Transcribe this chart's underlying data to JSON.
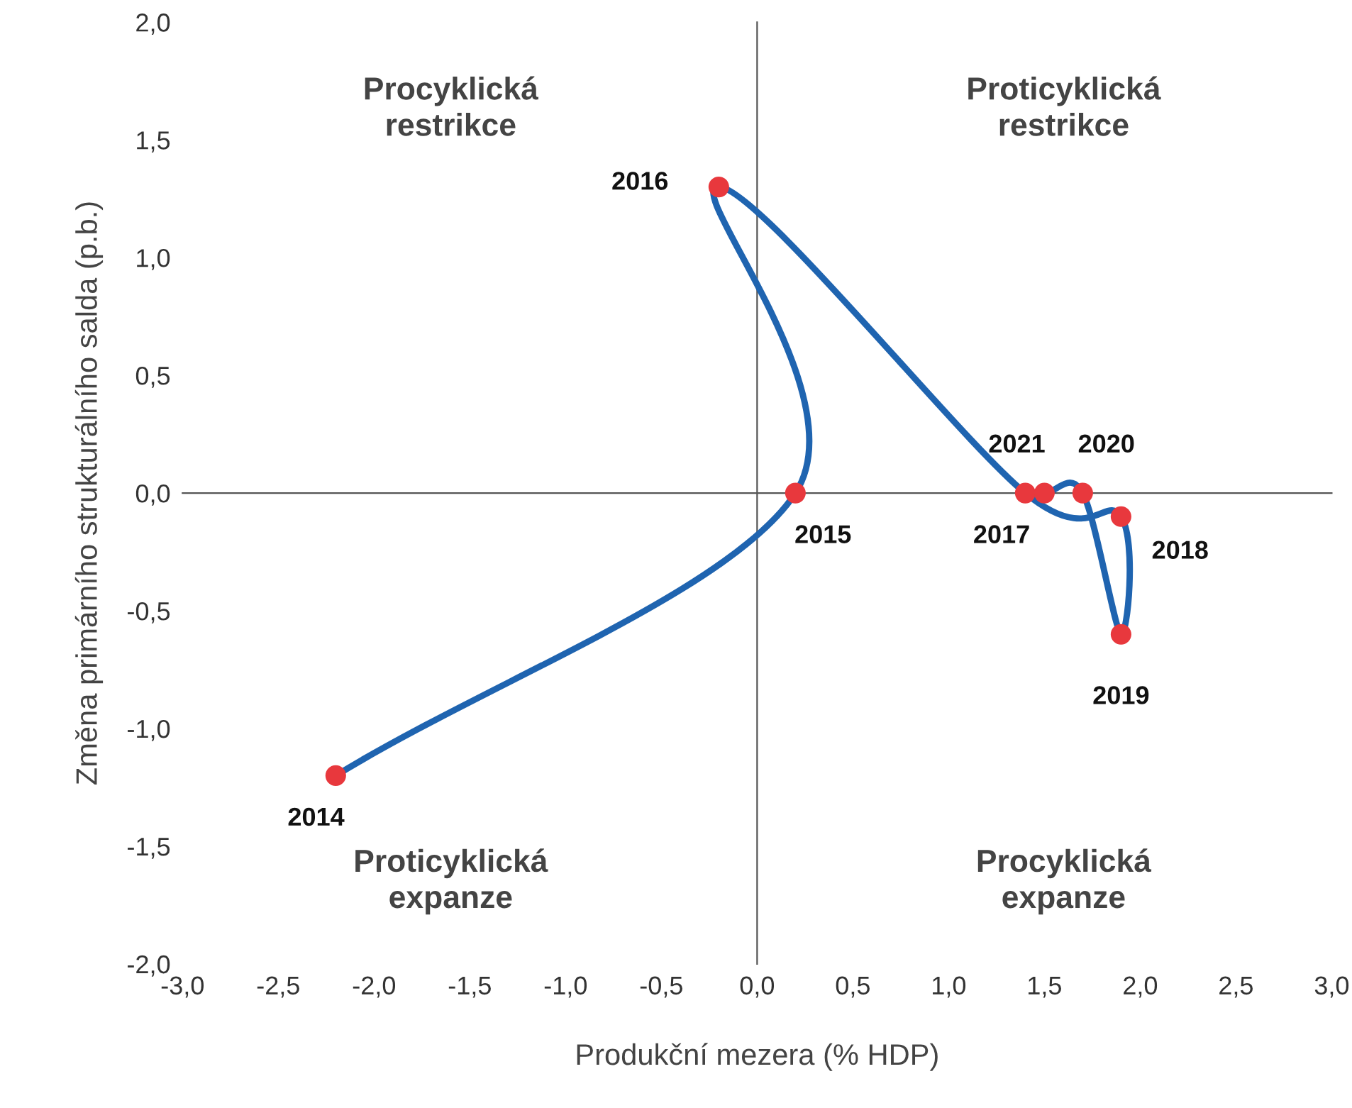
{
  "chart_data": {
    "type": "scatter",
    "xlabel": "Produkční mezera (% HDP)",
    "ylabel": "Změna primárního strukturálního salda (p.b.)",
    "series": [
      {
        "type": "line",
        "marker": "none",
        "color": "#1f64b0",
        "x": [
          -2.2,
          0.2,
          -0.2,
          1.4,
          1.9,
          1.9,
          1.7,
          1.5
        ],
        "values": [
          -1.2,
          0.0,
          1.3,
          0.0,
          -0.1,
          -0.6,
          0.0,
          0.0
        ]
      },
      {
        "marker": "circle",
        "color": "#e8383d",
        "x": [
          -2.2,
          0.2,
          -0.2,
          1.4,
          1.9,
          1.9,
          1.7,
          1.5
        ],
        "values": [
          -1.2,
          0.0,
          1.3,
          0.0,
          -0.1,
          -0.6,
          0.0,
          0.0
        ]
      }
    ],
    "annotations": [
      "Procyklická\nrestrikce",
      "Proticyklická\nrestrikce",
      "Proticyklická\nexpanze",
      "Procyklická\nexpanze",
      {
        "text": "2014",
        "x": -2.2,
        "y": -1.2
      },
      {
        "text": "2015",
        "x": 0.2,
        "y": 0.0
      },
      {
        "text": "2016",
        "x": -0.2,
        "y": 1.3
      },
      {
        "text": "2017",
        "x": 1.4,
        "y": 0.0
      },
      {
        "text": "2018",
        "x": 1.9,
        "y": -0.1
      },
      {
        "text": "2019",
        "x": 1.9,
        "y": -0.6
      },
      {
        "text": "2020",
        "x": 1.7,
        "y": 0.0
      },
      {
        "text": "2021",
        "x": 1.5,
        "y": 0.0
      }
    ],
    "xlim": [
      -3,
      3
    ],
    "ylim": [
      -2,
      2
    ],
    "xticks": [
      {
        "value": -3,
        "label": "-3,0"
      },
      {
        "value": -2.5,
        "label": "-2,5"
      },
      {
        "value": -2,
        "label": "-2,0"
      },
      {
        "value": -1.5,
        "label": "-1,5"
      },
      {
        "value": -1,
        "label": "-1,0"
      },
      {
        "value": -0.5,
        "label": "-0,5"
      },
      {
        "value": 0,
        "label": "0,0"
      },
      {
        "value": 0.5,
        "label": "0,5"
      },
      {
        "value": 1,
        "label": "1,0"
      },
      {
        "value": 1.5,
        "label": "1,5"
      },
      {
        "value": 2,
        "label": "2,0"
      },
      {
        "value": 2.5,
        "label": "2,5"
      },
      {
        "value": 3,
        "label": "3,0"
      }
    ],
    "yticks": [
      {
        "value": -2,
        "label": "-2,0"
      },
      {
        "value": -1.5,
        "label": "-1,5"
      },
      {
        "value": -1,
        "label": "-1,0"
      },
      {
        "value": -0.5,
        "label": "-0,5"
      },
      {
        "value": 0,
        "label": "0,0"
      },
      {
        "value": 0.5,
        "label": "0,5"
      },
      {
        "value": 1,
        "label": "1,0"
      },
      {
        "value": 1.5,
        "label": "1,5"
      },
      {
        "value": 2,
        "label": "2,0"
      }
    ]
  }
}
